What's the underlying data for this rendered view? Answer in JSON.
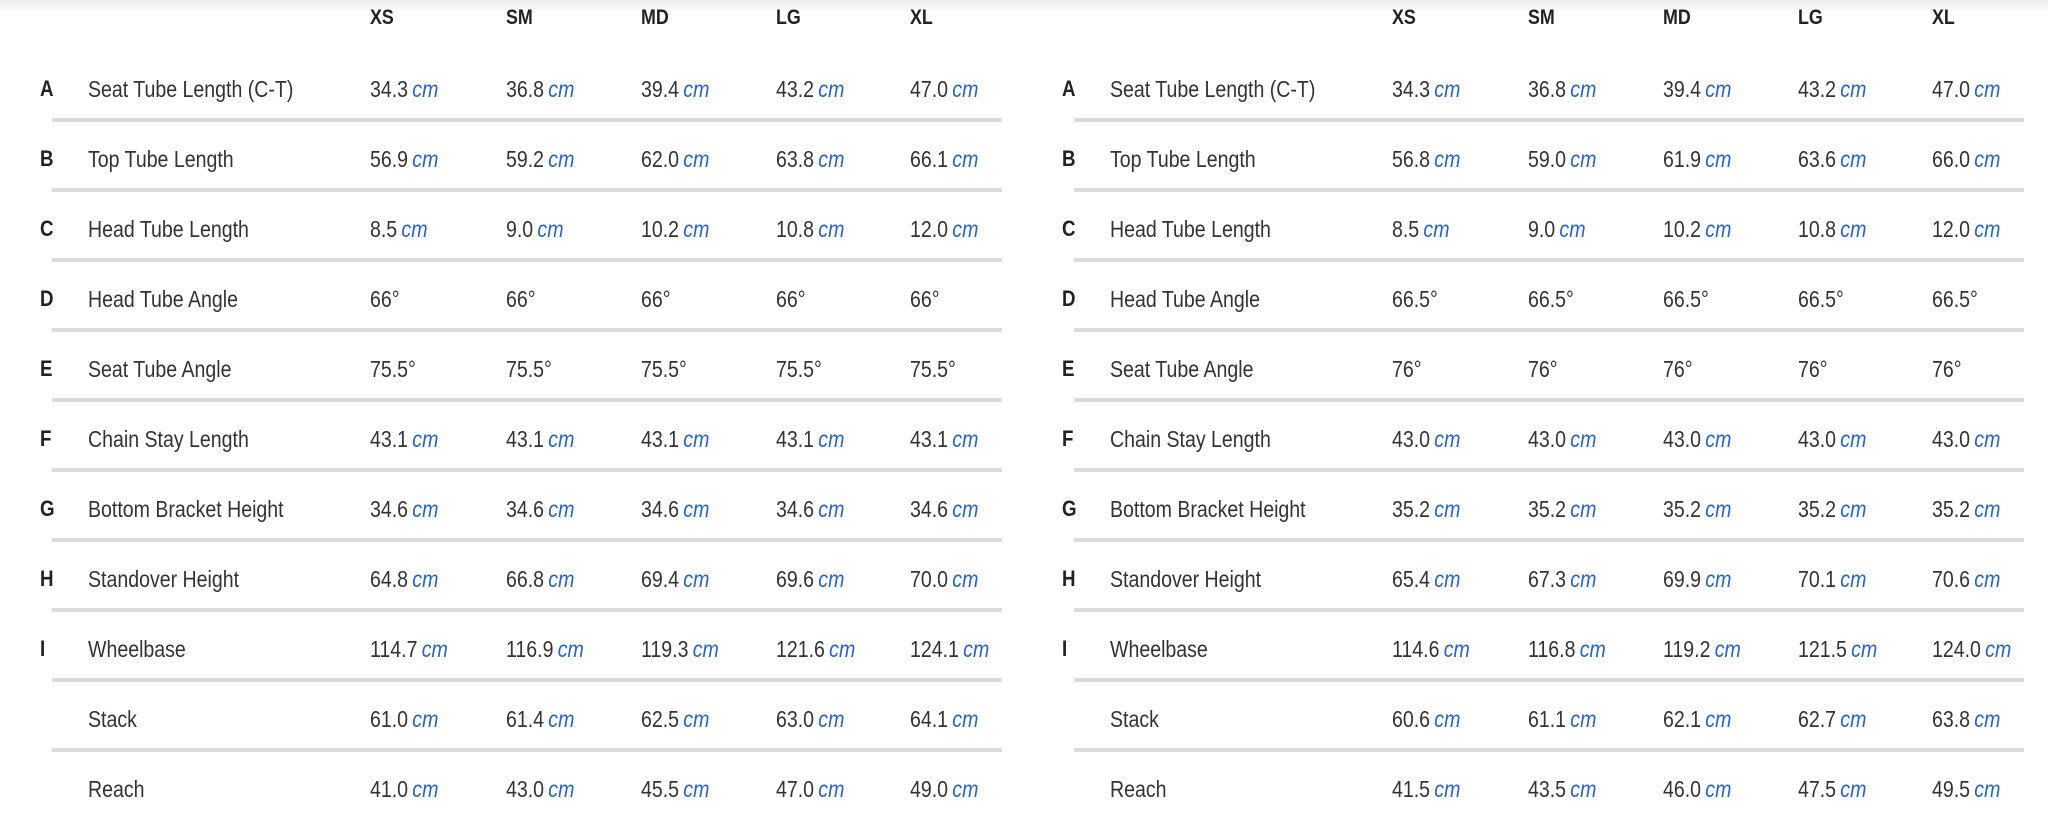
{
  "colors": {
    "unit": "#2a63c0",
    "text": "#333333",
    "separator": "#dcdcdc"
  },
  "tables": [
    {
      "sizes": [
        "XS",
        "SM",
        "MD",
        "LG",
        "XL"
      ],
      "rows": [
        {
          "letter": "A",
          "label": "Seat Tube Length (C-T)",
          "values": [
            "34.3",
            "36.8",
            "39.4",
            "43.2",
            "47.0"
          ],
          "unit": "cm"
        },
        {
          "letter": "B",
          "label": "Top Tube Length",
          "values": [
            "56.9",
            "59.2",
            "62.0",
            "63.8",
            "66.1"
          ],
          "unit": "cm"
        },
        {
          "letter": "C",
          "label": "Head Tube Length",
          "values": [
            "8.5",
            "9.0",
            "10.2",
            "10.8",
            "12.0"
          ],
          "unit": "cm"
        },
        {
          "letter": "D",
          "label": "Head Tube Angle",
          "values": [
            "66°",
            "66°",
            "66°",
            "66°",
            "66°"
          ],
          "unit": ""
        },
        {
          "letter": "E",
          "label": "Seat Tube Angle",
          "values": [
            "75.5°",
            "75.5°",
            "75.5°",
            "75.5°",
            "75.5°"
          ],
          "unit": ""
        },
        {
          "letter": "F",
          "label": "Chain Stay Length",
          "values": [
            "43.1",
            "43.1",
            "43.1",
            "43.1",
            "43.1"
          ],
          "unit": "cm"
        },
        {
          "letter": "G",
          "label": "Bottom Bracket Height",
          "values": [
            "34.6",
            "34.6",
            "34.6",
            "34.6",
            "34.6"
          ],
          "unit": "cm"
        },
        {
          "letter": "H",
          "label": "Standover Height",
          "values": [
            "64.8",
            "66.8",
            "69.4",
            "69.6",
            "70.0"
          ],
          "unit": "cm"
        },
        {
          "letter": "I",
          "label": "Wheelbase",
          "values": [
            "114.7",
            "116.9",
            "119.3",
            "121.6",
            "124.1"
          ],
          "unit": "cm"
        },
        {
          "letter": "",
          "label": "Stack",
          "values": [
            "61.0",
            "61.4",
            "62.5",
            "63.0",
            "64.1"
          ],
          "unit": "cm"
        },
        {
          "letter": "",
          "label": "Reach",
          "values": [
            "41.0",
            "43.0",
            "45.5",
            "47.0",
            "49.0"
          ],
          "unit": "cm"
        }
      ]
    },
    {
      "sizes": [
        "XS",
        "SM",
        "MD",
        "LG",
        "XL"
      ],
      "rows": [
        {
          "letter": "A",
          "label": "Seat Tube Length (C-T)",
          "values": [
            "34.3",
            "36.8",
            "39.4",
            "43.2",
            "47.0"
          ],
          "unit": "cm"
        },
        {
          "letter": "B",
          "label": "Top Tube Length",
          "values": [
            "56.8",
            "59.0",
            "61.9",
            "63.6",
            "66.0"
          ],
          "unit": "cm"
        },
        {
          "letter": "C",
          "label": "Head Tube Length",
          "values": [
            "8.5",
            "9.0",
            "10.2",
            "10.8",
            "12.0"
          ],
          "unit": "cm"
        },
        {
          "letter": "D",
          "label": "Head Tube Angle",
          "values": [
            "66.5°",
            "66.5°",
            "66.5°",
            "66.5°",
            "66.5°"
          ],
          "unit": ""
        },
        {
          "letter": "E",
          "label": "Seat Tube Angle",
          "values": [
            "76°",
            "76°",
            "76°",
            "76°",
            "76°"
          ],
          "unit": ""
        },
        {
          "letter": "F",
          "label": "Chain Stay Length",
          "values": [
            "43.0",
            "43.0",
            "43.0",
            "43.0",
            "43.0"
          ],
          "unit": "cm"
        },
        {
          "letter": "G",
          "label": "Bottom Bracket Height",
          "values": [
            "35.2",
            "35.2",
            "35.2",
            "35.2",
            "35.2"
          ],
          "unit": "cm"
        },
        {
          "letter": "H",
          "label": "Standover Height",
          "values": [
            "65.4",
            "67.3",
            "69.9",
            "70.1",
            "70.6"
          ],
          "unit": "cm"
        },
        {
          "letter": "I",
          "label": "Wheelbase",
          "values": [
            "114.6",
            "116.8",
            "119.2",
            "121.5",
            "124.0"
          ],
          "unit": "cm"
        },
        {
          "letter": "",
          "label": "Stack",
          "values": [
            "60.6",
            "61.1",
            "62.1",
            "62.7",
            "63.8"
          ],
          "unit": "cm"
        },
        {
          "letter": "",
          "label": "Reach",
          "values": [
            "41.5",
            "43.5",
            "46.0",
            "47.5",
            "49.5"
          ],
          "unit": "cm"
        }
      ]
    }
  ]
}
